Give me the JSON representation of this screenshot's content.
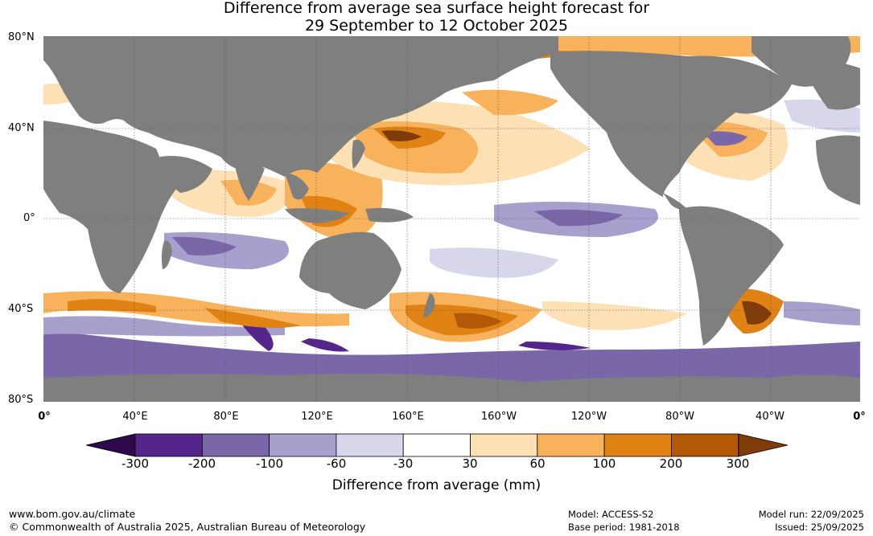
{
  "title_line1": "Difference from average sea surface height forecast for",
  "title_line2": "29 September to 12 October 2025",
  "lat_labels": [
    "80°N",
    "40°N",
    "0°",
    "40°S",
    "80°S"
  ],
  "lon_labels": [
    "0°",
    "40°E",
    "80°E",
    "120°E",
    "160°E",
    "160°W",
    "120°W",
    "80°W",
    "40°W",
    "0°"
  ],
  "colorbar": {
    "ticks": [
      "-300",
      "-200",
      "-100",
      "-60",
      "-30",
      "30",
      "60",
      "100",
      "200",
      "300"
    ],
    "colors": [
      "#2e0a4d",
      "#54258a",
      "#7a67a8",
      "#a8a0cc",
      "#d8d6ea",
      "#ffffff",
      "#fde0b4",
      "#f8b25c",
      "#e08214",
      "#b35806",
      "#7f3b08"
    ],
    "label": "Difference from average (mm)"
  },
  "land_color": "#7f7f7f",
  "footer": {
    "url": "www.bom.gov.au/climate",
    "copyright": "© Commonwealth of Australia 2025, Australian Bureau of Meteorology",
    "model": "Model: ACCESS-S2",
    "base_period": "Base period: 1981-2018",
    "model_run": "Model run: 22/09/2025",
    "issued": "Issued: 25/09/2025"
  }
}
